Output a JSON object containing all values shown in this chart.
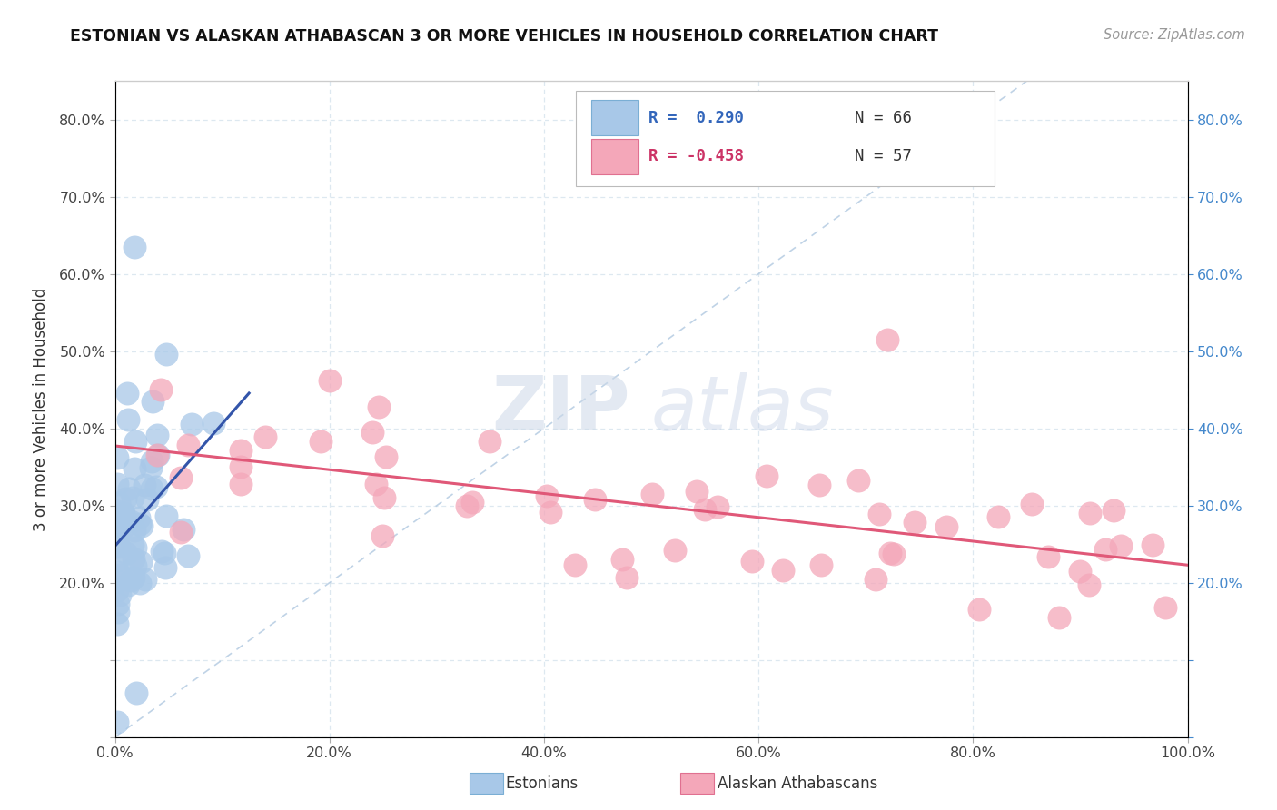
{
  "title": "ESTONIAN VS ALASKAN ATHABASCAN 3 OR MORE VEHICLES IN HOUSEHOLD CORRELATION CHART",
  "source_text": "Source: ZipAtlas.com",
  "ylabel": "3 or more Vehicles in Household",
  "blue_color": "#a8c8e8",
  "blue_edge_color": "#7aaed4",
  "blue_line_color": "#3355aa",
  "pink_color": "#f4a7b9",
  "pink_edge_color": "#e07090",
  "pink_line_color": "#e05878",
  "diag_color": "#b0c8e0",
  "legend_R_blue": "R =  0.290",
  "legend_N_blue": "N = 66",
  "legend_R_pink": "R = -0.458",
  "legend_N_pink": "N = 57",
  "legend_label_blue": "Estonians",
  "legend_label_pink": "Alaskan Athabascans",
  "blue_R": 0.29,
  "pink_R": -0.458,
  "blue_N": 66,
  "pink_N": 57,
  "xlim": [
    0,
    1.0
  ],
  "ylim": [
    0,
    0.85
  ],
  "xtick_vals": [
    0.0,
    0.2,
    0.4,
    0.6,
    0.8,
    1.0
  ],
  "xtick_labels": [
    "0.0%",
    "20.0%",
    "40.0%",
    "60.0%",
    "80.0%",
    "100.0%"
  ],
  "ytick_vals": [
    0.0,
    0.1,
    0.2,
    0.3,
    0.4,
    0.5,
    0.6,
    0.7,
    0.8
  ],
  "ytick_labels": [
    "",
    "",
    "20.0%",
    "30.0%",
    "40.0%",
    "50.0%",
    "60.0%",
    "70.0%",
    "80.0%"
  ],
  "right_ytick_labels": [
    "",
    "",
    "20.0%",
    "30.0%",
    "40.0%",
    "50.0%",
    "60.0%",
    "70.0%",
    "80.0%"
  ],
  "grid_color": "#dde8f0",
  "grid_dashes": [
    4,
    3
  ]
}
